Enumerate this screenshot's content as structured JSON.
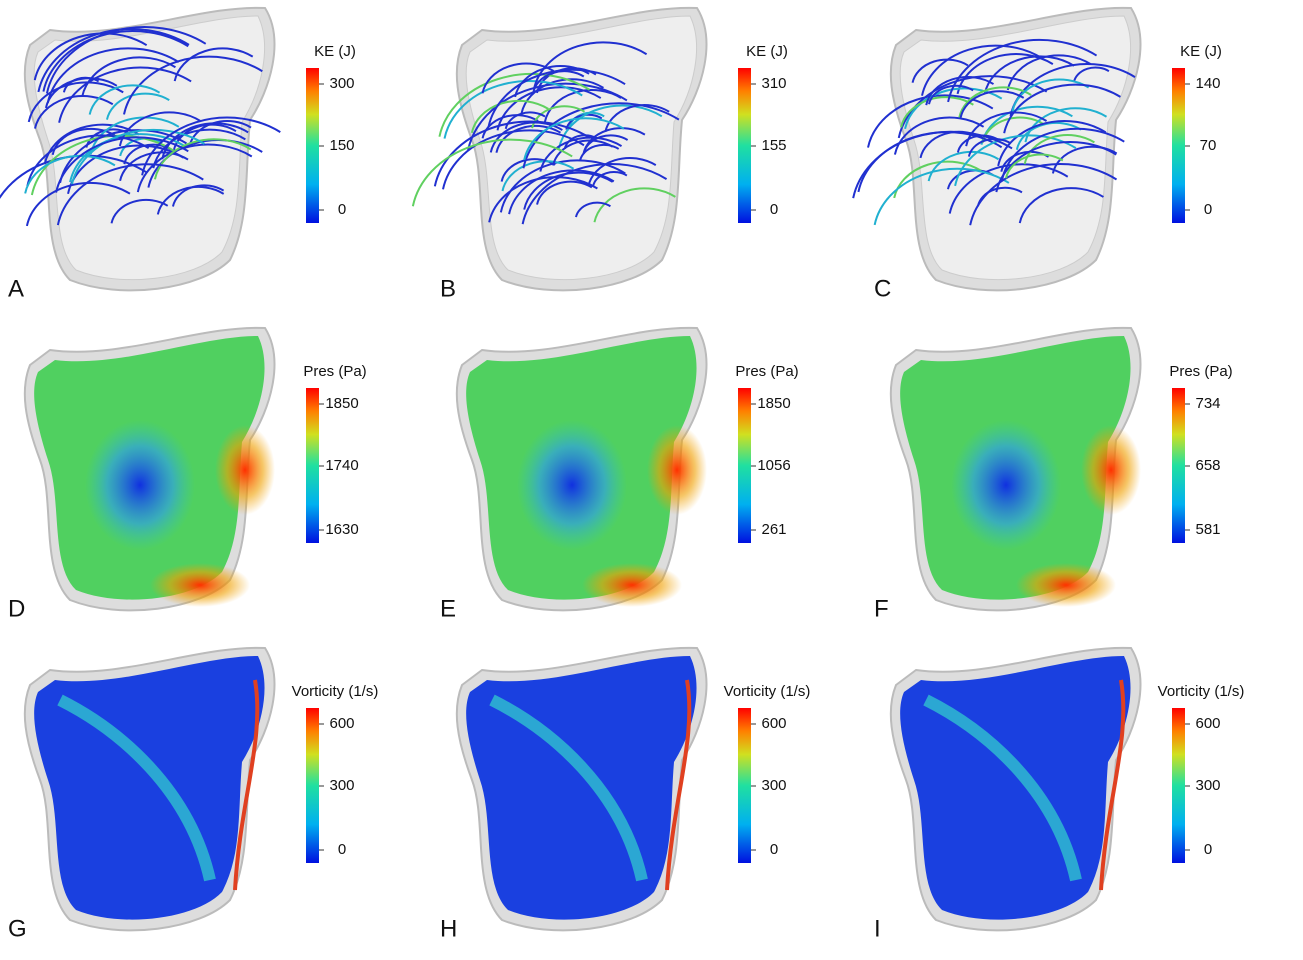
{
  "panels": [
    {
      "label": "A",
      "colorbar": {
        "title": "KE (J)",
        "ticks": [
          300,
          150,
          0
        ]
      }
    },
    {
      "label": "B",
      "colorbar": {
        "title": "KE (J)",
        "ticks": [
          310,
          155,
          0
        ]
      }
    },
    {
      "label": "C",
      "colorbar": {
        "title": "KE (J)",
        "ticks": [
          140,
          70,
          0
        ]
      }
    },
    {
      "label": "D",
      "colorbar": {
        "title": "Pres (Pa)",
        "ticks": [
          1850,
          1740,
          1630
        ]
      }
    },
    {
      "label": "E",
      "colorbar": {
        "title": "Pres (Pa)",
        "ticks": [
          1850,
          1056,
          261
        ]
      }
    },
    {
      "label": "F",
      "colorbar": {
        "title": "Pres (Pa)",
        "ticks": [
          734,
          658,
          581
        ]
      }
    },
    {
      "label": "G",
      "colorbar": {
        "title": "Vorticity (1/s)",
        "ticks": [
          600,
          300,
          0
        ]
      }
    },
    {
      "label": "H",
      "colorbar": {
        "title": "Vorticity (1/s)",
        "ticks": [
          600,
          300,
          0
        ]
      }
    },
    {
      "label": "I",
      "colorbar": {
        "title": "Vorticity (1/s)",
        "ticks": [
          600,
          300,
          0
        ]
      }
    }
  ]
}
